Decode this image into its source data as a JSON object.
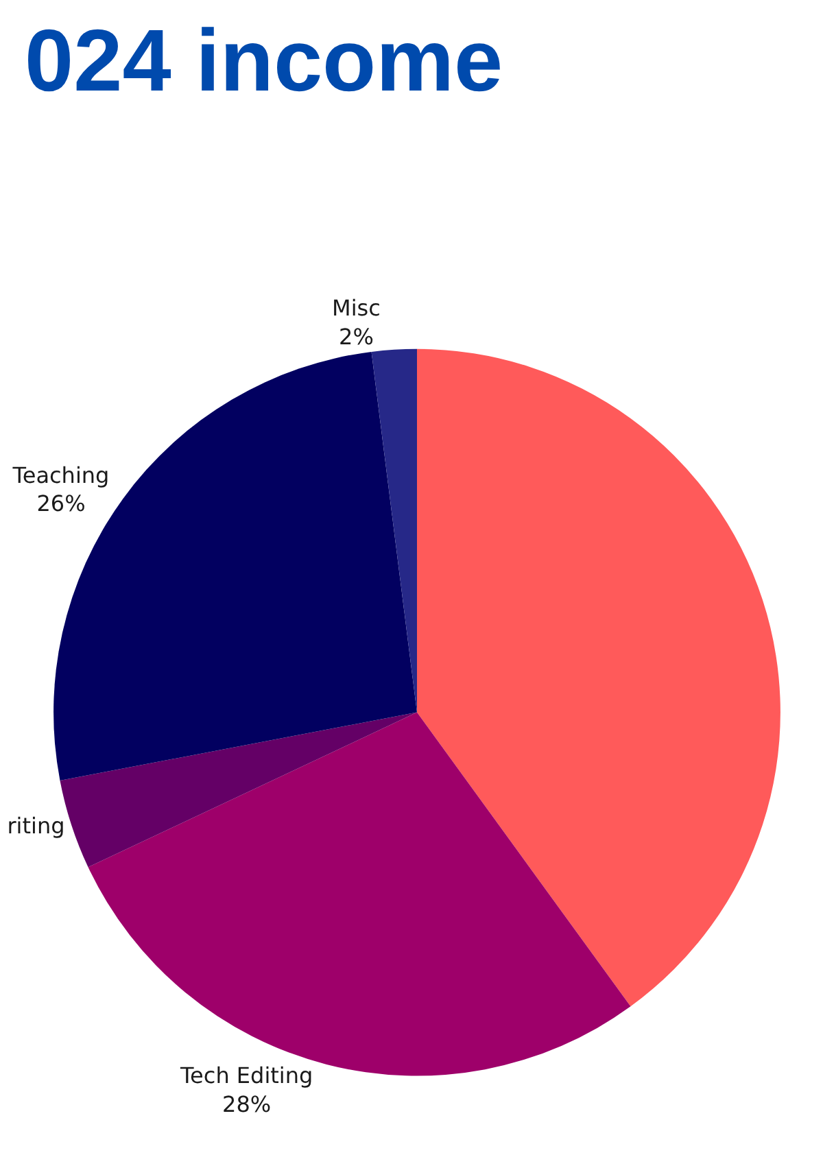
{
  "chart_data": {
    "type": "pie",
    "title": "024 income",
    "categories": [
      null,
      "Tech Editing",
      "riting",
      "Teaching",
      "Misc"
    ],
    "values": [
      40,
      28,
      4,
      26,
      2
    ],
    "value_labels": [
      null,
      "28%",
      null,
      "26%",
      "2%"
    ],
    "colors": [
      "#ff5a5a",
      "#9e006a",
      "#640066",
      "#020060",
      "#262888"
    ]
  }
}
